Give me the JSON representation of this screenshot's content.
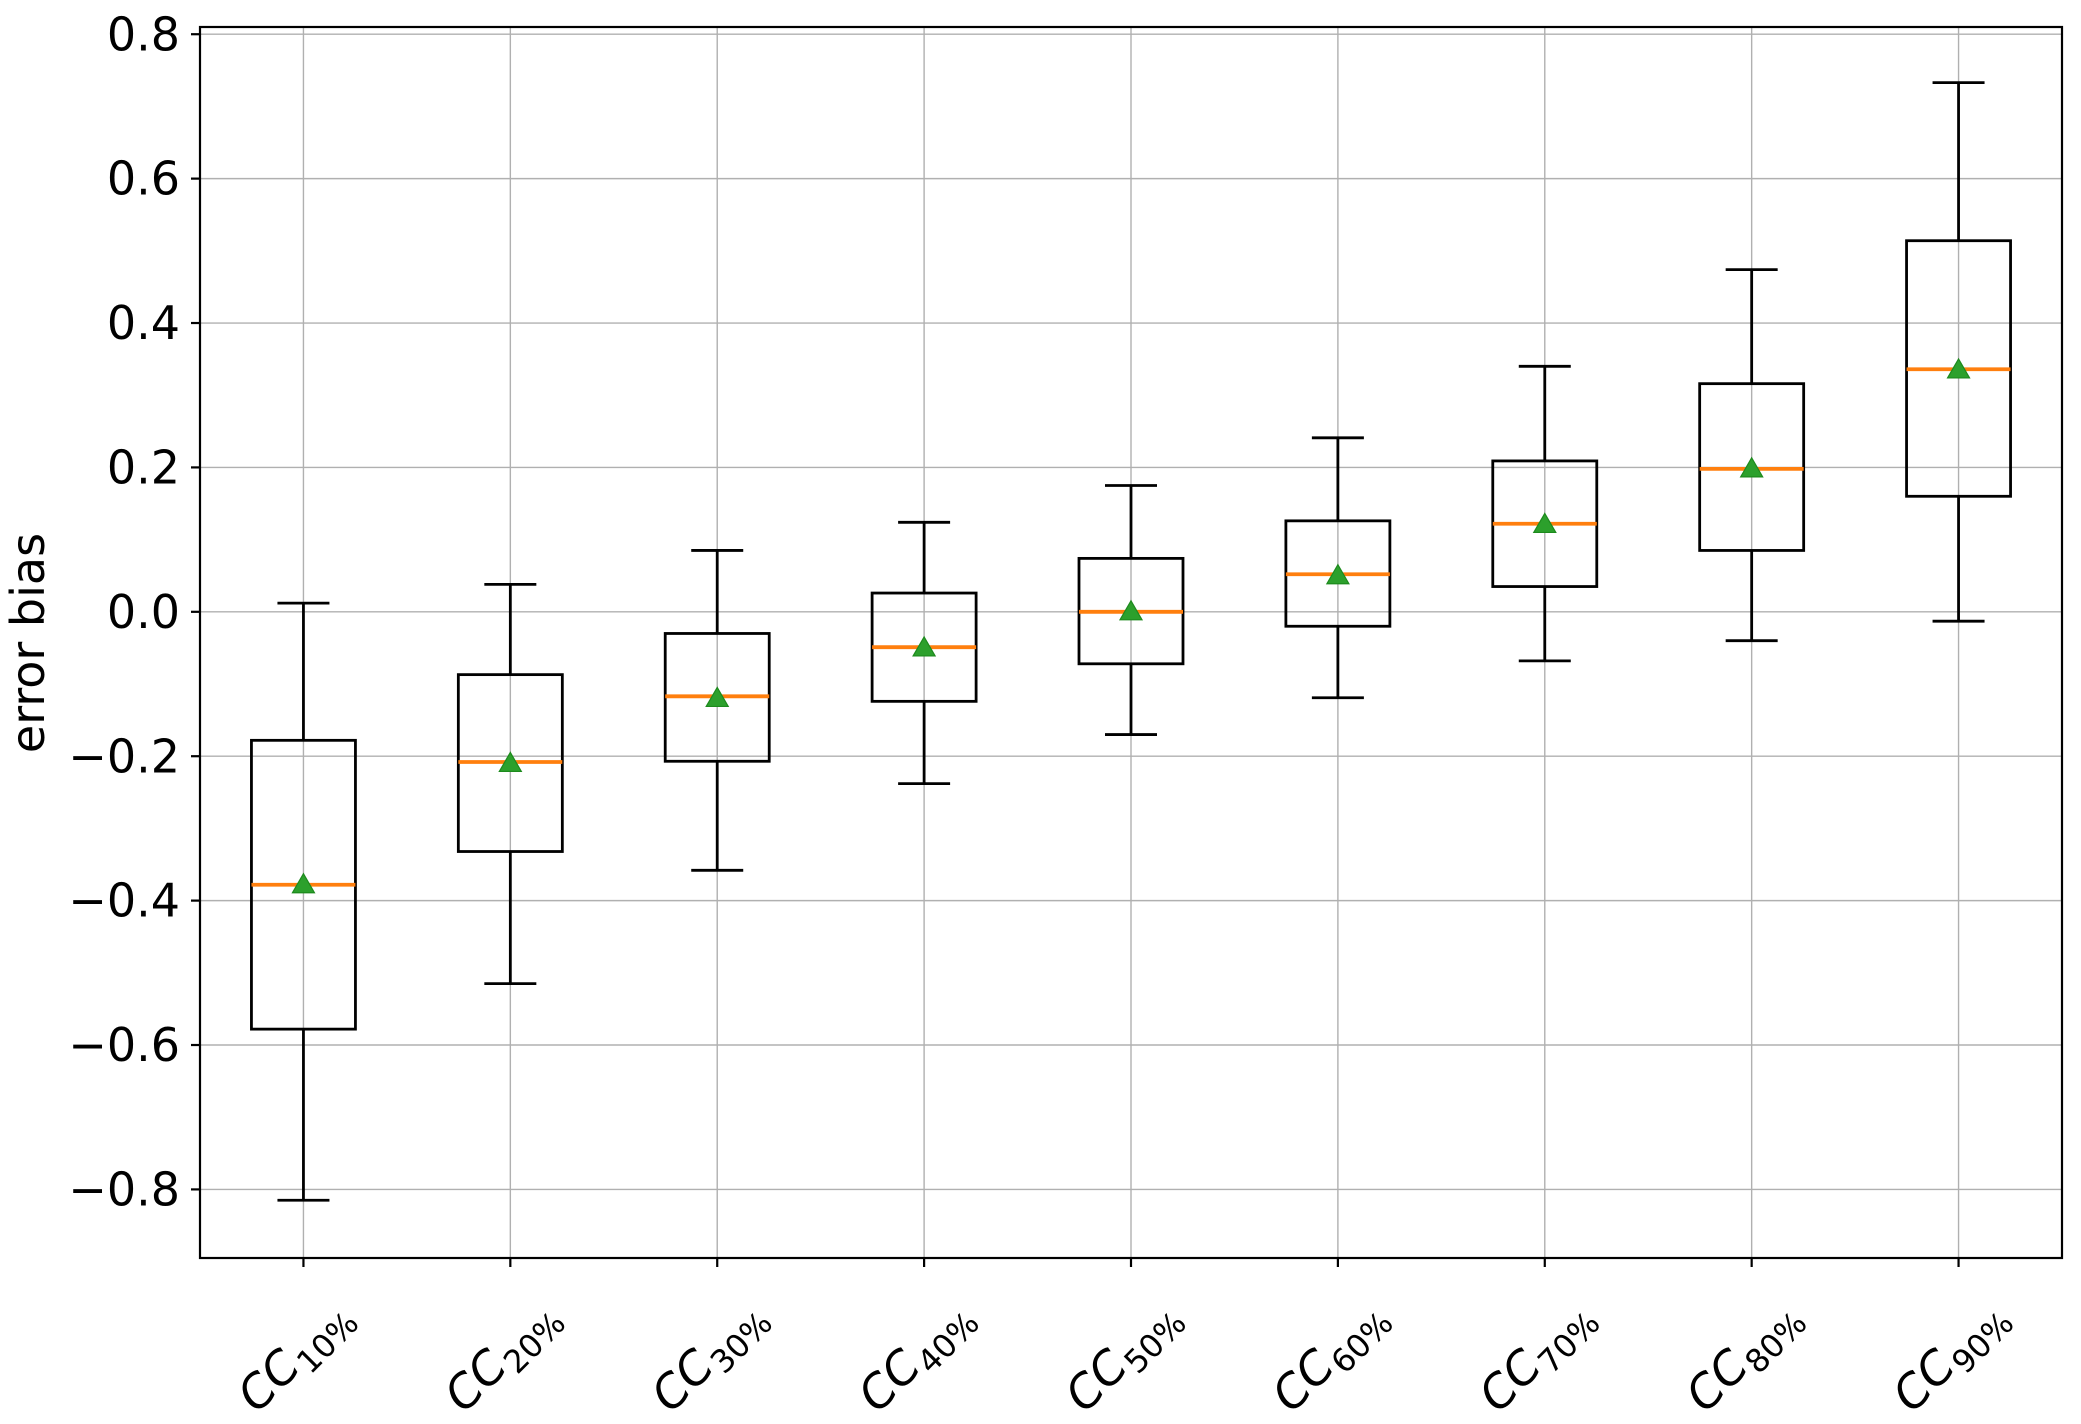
{
  "figure": {
    "background": "#ffffff"
  },
  "chart_data": {
    "type": "boxplot",
    "title": "",
    "xlabel": "",
    "ylabel": "error bias",
    "ylim": [
      -0.895,
      0.81
    ],
    "yticks": [
      0.8,
      0.6,
      0.4,
      0.2,
      0.0,
      -0.2,
      -0.4,
      -0.6,
      -0.8
    ],
    "ytick_labels": [
      "0.8",
      "0.6",
      "0.4",
      "0.2",
      "0.0",
      "−0.2",
      "−0.4",
      "−0.6",
      "−0.8"
    ],
    "grid": true,
    "legend": false,
    "categories": [
      {
        "label": "CC10%",
        "prefix": "CC",
        "subscript": "10%"
      },
      {
        "label": "CC20%",
        "prefix": "CC",
        "subscript": "20%"
      },
      {
        "label": "CC30%",
        "prefix": "CC",
        "subscript": "30%"
      },
      {
        "label": "CC40%",
        "prefix": "CC",
        "subscript": "40%"
      },
      {
        "label": "CC50%",
        "prefix": "CC",
        "subscript": "50%"
      },
      {
        "label": "CC60%",
        "prefix": "CC",
        "subscript": "60%"
      },
      {
        "label": "CC70%",
        "prefix": "CC",
        "subscript": "70%"
      },
      {
        "label": "CC80%",
        "prefix": "CC",
        "subscript": "80%"
      },
      {
        "label": "CC90%",
        "prefix": "CC",
        "subscript": "90%"
      }
    ],
    "boxes": [
      {
        "category": "CC10%",
        "whislo": -0.815,
        "q1": -0.578,
        "med": -0.378,
        "mean": -0.378,
        "q3": -0.178,
        "whishi": 0.012
      },
      {
        "category": "CC20%",
        "whislo": -0.515,
        "q1": -0.332,
        "med": -0.208,
        "mean": -0.21,
        "q3": -0.087,
        "whishi": 0.038
      },
      {
        "category": "CC30%",
        "whislo": -0.358,
        "q1": -0.207,
        "med": -0.117,
        "mean": -0.12,
        "q3": -0.03,
        "whishi": 0.085
      },
      {
        "category": "CC40%",
        "whislo": -0.238,
        "q1": -0.124,
        "med": -0.049,
        "mean": -0.05,
        "q3": 0.026,
        "whishi": 0.124
      },
      {
        "category": "CC50%",
        "whislo": -0.17,
        "q1": -0.072,
        "med": 0.0,
        "mean": 0.0,
        "q3": 0.074,
        "whishi": 0.175
      },
      {
        "category": "CC60%",
        "whislo": -0.119,
        "q1": -0.02,
        "med": 0.052,
        "mean": 0.05,
        "q3": 0.126,
        "whishi": 0.241
      },
      {
        "category": "CC70%",
        "whislo": -0.068,
        "q1": 0.035,
        "med": 0.122,
        "mean": 0.121,
        "q3": 0.209,
        "whishi": 0.34
      },
      {
        "category": "CC80%",
        "whislo": -0.04,
        "q1": 0.085,
        "med": 0.198,
        "mean": 0.198,
        "q3": 0.316,
        "whishi": 0.474
      },
      {
        "category": "CC90%",
        "whislo": -0.013,
        "q1": 0.16,
        "med": 0.336,
        "mean": 0.335,
        "q3": 0.514,
        "whishi": 0.733
      }
    ],
    "colors": {
      "median": "#ff7f0e",
      "mean_fill": "#2ca02c",
      "mean_edge": "#1d8a1d",
      "box": "#000000",
      "whisker": "#000000",
      "grid": "#b0b0b0",
      "axis": "#000000",
      "tick_label": "#000000"
    }
  }
}
